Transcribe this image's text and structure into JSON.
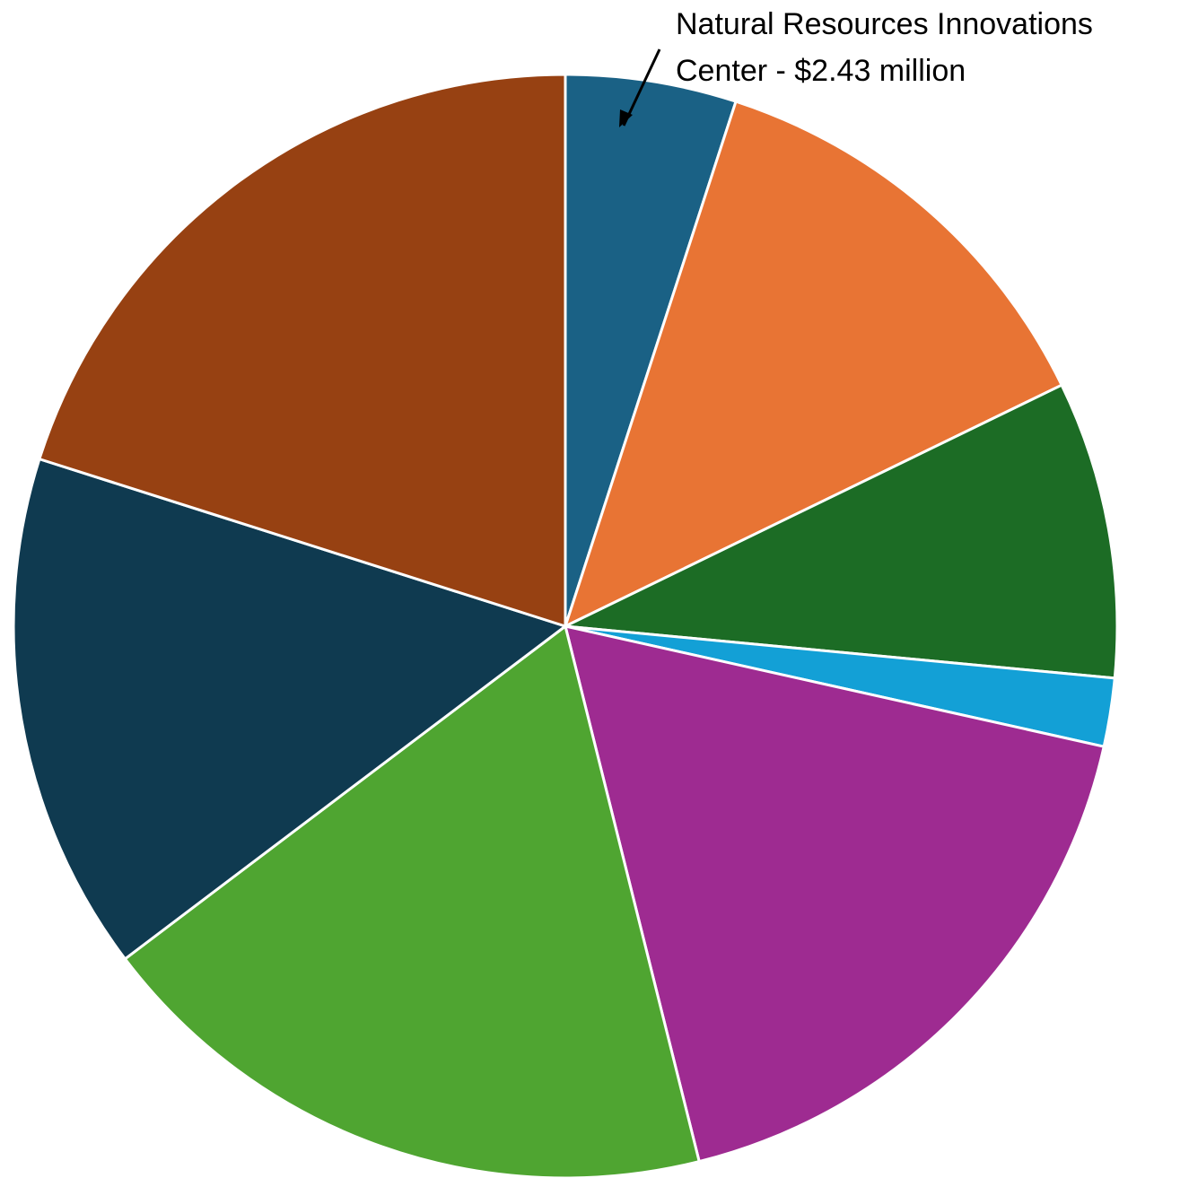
{
  "chart_data": {
    "type": "pie",
    "start": "12 o'clock",
    "direction": "clockwise",
    "slice_border_color": "#ffffff",
    "slices": [
      {
        "percent": 5.0,
        "color": "#1a6185"
      },
      {
        "percent": 12.8,
        "color": "#e87434"
      },
      {
        "percent": 8.7,
        "color": "#1c6c25"
      },
      {
        "percent": 2.0,
        "color": "#13a0d6"
      },
      {
        "percent": 17.6,
        "color": "#9e2b91"
      },
      {
        "percent": 18.6,
        "color": "#4fa531"
      },
      {
        "percent": 15.2,
        "color": "#0f3a50"
      },
      {
        "percent": 20.1,
        "color": "#974112"
      }
    ],
    "annotations": [
      {
        "slice_index": 0,
        "lines": [
          "Natural Resources Innovations",
          "Center - $2.43 million"
        ]
      }
    ]
  }
}
